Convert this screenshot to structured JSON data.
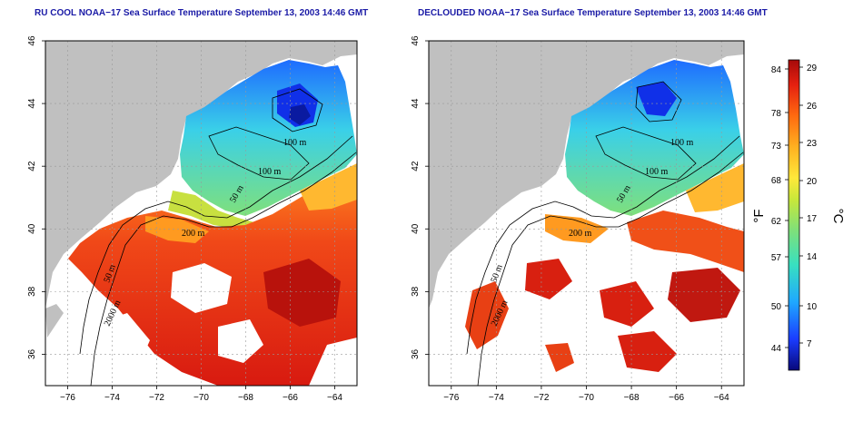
{
  "maps": [
    {
      "title": "RU COOL NOAA−17 Sea Surface Temperature September 13, 2003 14:46 GMT",
      "contour_labels": [
        "100 m",
        "100 m",
        "50 m",
        "200 m",
        "50 m",
        "2000 m"
      ]
    },
    {
      "title": "DECLOUDED NOAA−17 Sea Surface Temperature September 13, 2003 14:46 GMT",
      "contour_labels": [
        "100 m",
        "100 m",
        "50 m",
        "200 m",
        "50 m",
        "2000 m"
      ]
    }
  ],
  "axes": {
    "lon_ticks": [
      "−76",
      "−74",
      "−72",
      "−70",
      "−68",
      "−66",
      "−64"
    ],
    "lat_ticks": [
      "36",
      "38",
      "40",
      "42",
      "44",
      "46"
    ],
    "lon_range": [
      -77,
      -63
    ],
    "lat_range": [
      35,
      46
    ],
    "grid": "dashed"
  },
  "colorbar": {
    "fahrenheit_ticks": [
      "84",
      "78",
      "73",
      "68",
      "62",
      "57",
      "50",
      "44"
    ],
    "celsius_ticks": [
      "29",
      "26",
      "23",
      "20",
      "17",
      "14",
      "10",
      "7"
    ],
    "fahrenheit_unit": "°F",
    "celsius_unit": "°C",
    "colors": [
      "#08087a",
      "#1a3cff",
      "#1fa8ff",
      "#38e0c0",
      "#7ee07a",
      "#c8e83a",
      "#ffe83a",
      "#ffb020",
      "#ff6a10",
      "#e52010",
      "#a60a0a"
    ]
  },
  "colors": {
    "land": "#c0c0c0",
    "no_data": "#ffffff",
    "title": "#1a1aa6"
  }
}
